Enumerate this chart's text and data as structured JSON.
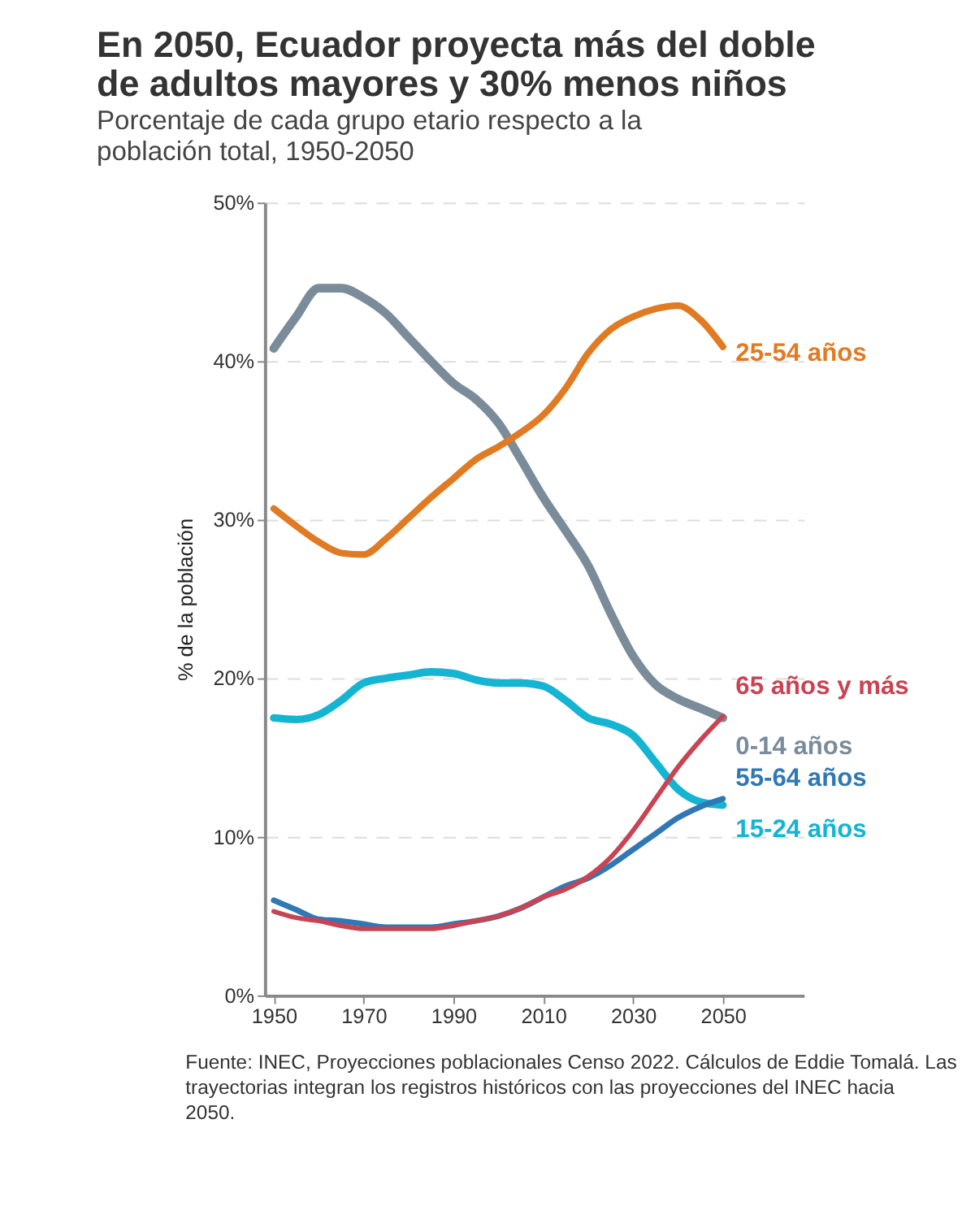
{
  "chart_data": {
    "type": "line",
    "title": "En 2050, Ecuador proyecta más del doble de adultos mayores y 30% menos niños",
    "subtitle": "Porcentaje de cada grupo etario respecto a la población total, 1950-2050",
    "ylabel": "% de la población",
    "x": [
      1950,
      1955,
      1960,
      1965,
      1970,
      1975,
      1980,
      1985,
      1990,
      1995,
      2000,
      2005,
      2010,
      2015,
      2020,
      2025,
      2030,
      2035,
      2040,
      2045,
      2050
    ],
    "series": [
      {
        "name": "0-14 años",
        "color": "#7a8c99",
        "values": [
          40.8,
          42.8,
          44.6,
          44.6,
          44.0,
          43.0,
          41.5,
          40.0,
          38.6,
          37.6,
          36.1,
          33.8,
          31.4,
          29.3,
          27.1,
          24.1,
          21.4,
          19.6,
          18.7,
          18.1,
          17.5
        ]
      },
      {
        "name": "15-24 años",
        "color": "#14b4d2",
        "values": [
          17.5,
          17.4,
          17.7,
          18.6,
          19.7,
          20.0,
          20.2,
          20.4,
          20.3,
          19.9,
          19.7,
          19.7,
          19.5,
          18.6,
          17.5,
          17.1,
          16.4,
          14.7,
          13.0,
          12.2,
          12.0
        ]
      },
      {
        "name": "25-54 años",
        "color": "#e07b24",
        "values": [
          30.7,
          29.6,
          28.6,
          27.9,
          27.8,
          28.8,
          30.1,
          31.4,
          32.6,
          33.8,
          34.6,
          35.5,
          36.6,
          38.3,
          40.5,
          42.0,
          42.8,
          43.3,
          43.5,
          42.6,
          40.9
        ]
      },
      {
        "name": "55-64 años",
        "color": "#2f78b5",
        "values": [
          6.0,
          5.4,
          4.8,
          4.7,
          4.5,
          4.3,
          4.3,
          4.3,
          4.5,
          4.7,
          5.0,
          5.5,
          6.2,
          6.9,
          7.4,
          8.2,
          9.2,
          10.2,
          11.2,
          11.9,
          12.4
        ]
      },
      {
        "name": "65 años y más",
        "color": "#c84453",
        "values": [
          5.3,
          4.9,
          4.7,
          4.4,
          4.2,
          4.2,
          4.2,
          4.2,
          4.4,
          4.7,
          5.0,
          5.5,
          6.2,
          6.7,
          7.5,
          8.7,
          10.4,
          12.4,
          14.4,
          16.1,
          17.6
        ]
      }
    ],
    "xlim": [
      1948,
      2068
    ],
    "xticks": [
      1950,
      1970,
      1990,
      2010,
      2030,
      2050
    ],
    "ylim": [
      0,
      50
    ],
    "yticks": [
      {
        "value": 0,
        "label": "0%"
      },
      {
        "value": 10,
        "label": "10%"
      },
      {
        "value": 20,
        "label": "20%"
      },
      {
        "value": 30,
        "label": "30%"
      },
      {
        "value": 40,
        "label": "40%"
      },
      {
        "value": 50,
        "label": "50%"
      }
    ],
    "grid": "y",
    "legend": false,
    "marker": "none",
    "line_style": "solid",
    "annotations": [
      "Fuente: INEC, Proyecciones poblacionales Censo 2022. Cálculos de Eddie Tomalá. Las trayectorias integran los registros históricos con las proyecciones del INEC hacia 2050."
    ]
  }
}
